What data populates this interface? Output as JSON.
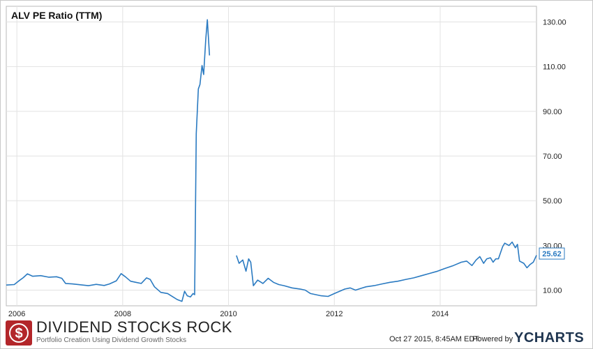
{
  "chart_data": {
    "type": "line",
    "title": "ALV PE Ratio (TTM)",
    "x_ticks": [
      "2006",
      "2008",
      "2010",
      "2012",
      "2014"
    ],
    "y_ticks": [
      "10.00",
      "30.00",
      "50.00",
      "70.00",
      "90.00",
      "110.00",
      "130.00"
    ],
    "ylim": [
      3,
      137
    ],
    "xlim": [
      2005.8,
      2015.82
    ],
    "grid": true,
    "y_axis_position": "right",
    "last_value_label": "25.62",
    "series_color": "#2a7ac1",
    "segments": [
      [
        [
          2005.8,
          12.3
        ],
        [
          2005.95,
          12.5
        ],
        [
          2006.03,
          14.0
        ],
        [
          2006.12,
          15.6
        ],
        [
          2006.2,
          17.3
        ],
        [
          2006.3,
          16.2
        ],
        [
          2006.45,
          16.5
        ],
        [
          2006.6,
          15.8
        ],
        [
          2006.75,
          16.0
        ],
        [
          2006.85,
          15.3
        ],
        [
          2006.92,
          13.0
        ],
        [
          2007.05,
          12.8
        ],
        [
          2007.2,
          12.4
        ],
        [
          2007.35,
          12.0
        ],
        [
          2007.5,
          12.6
        ],
        [
          2007.65,
          12.1
        ],
        [
          2007.75,
          12.8
        ],
        [
          2007.88,
          14.2
        ],
        [
          2007.97,
          17.4
        ],
        [
          2008.05,
          16.0
        ],
        [
          2008.15,
          14.0
        ],
        [
          2008.25,
          13.5
        ],
        [
          2008.35,
          13.0
        ],
        [
          2008.45,
          15.5
        ],
        [
          2008.52,
          14.8
        ],
        [
          2008.6,
          11.5
        ],
        [
          2008.72,
          9.0
        ],
        [
          2008.85,
          8.5
        ],
        [
          2008.95,
          7.0
        ],
        [
          2009.03,
          5.8
        ],
        [
          2009.12,
          5.0
        ],
        [
          2009.17,
          9.5
        ],
        [
          2009.22,
          7.5
        ],
        [
          2009.28,
          7.0
        ],
        [
          2009.33,
          8.5
        ],
        [
          2009.36,
          8.0
        ],
        [
          2009.39,
          80.0
        ],
        [
          2009.43,
          100.0
        ],
        [
          2009.46,
          102.0
        ],
        [
          2009.5,
          110.5
        ],
        [
          2009.53,
          106.5
        ],
        [
          2009.57,
          122.0
        ],
        [
          2009.6,
          131.0
        ],
        [
          2009.64,
          115.0
        ]
      ],
      [
        [
          2010.15,
          25.5
        ],
        [
          2010.2,
          22.0
        ],
        [
          2010.27,
          23.5
        ],
        [
          2010.33,
          18.5
        ],
        [
          2010.38,
          24.0
        ],
        [
          2010.42,
          22.5
        ],
        [
          2010.47,
          12.0
        ],
        [
          2010.55,
          14.5
        ],
        [
          2010.65,
          13.0
        ],
        [
          2010.75,
          15.3
        ],
        [
          2010.85,
          13.5
        ],
        [
          2010.95,
          12.5
        ],
        [
          2011.05,
          12.0
        ],
        [
          2011.2,
          11.0
        ],
        [
          2011.35,
          10.5
        ],
        [
          2011.45,
          10.0
        ],
        [
          2011.55,
          8.5
        ],
        [
          2011.65,
          8.0
        ],
        [
          2011.75,
          7.5
        ],
        [
          2011.88,
          7.2
        ],
        [
          2012.0,
          8.5
        ],
        [
          2012.1,
          9.5
        ],
        [
          2012.2,
          10.5
        ],
        [
          2012.3,
          11.0
        ],
        [
          2012.4,
          10.0
        ],
        [
          2012.5,
          10.8
        ],
        [
          2012.6,
          11.5
        ],
        [
          2012.75,
          12.0
        ],
        [
          2012.9,
          12.8
        ],
        [
          2013.05,
          13.5
        ],
        [
          2013.2,
          14.0
        ],
        [
          2013.35,
          14.8
        ],
        [
          2013.5,
          15.5
        ],
        [
          2013.65,
          16.5
        ],
        [
          2013.8,
          17.5
        ],
        [
          2013.95,
          18.5
        ],
        [
          2014.1,
          19.8
        ],
        [
          2014.25,
          21.0
        ],
        [
          2014.4,
          22.5
        ],
        [
          2014.5,
          23.0
        ],
        [
          2014.6,
          21.0
        ],
        [
          2014.68,
          23.5
        ],
        [
          2014.75,
          25.0
        ],
        [
          2014.82,
          22.0
        ],
        [
          2014.88,
          24.0
        ],
        [
          2014.95,
          24.5
        ],
        [
          2015.0,
          22.5
        ],
        [
          2015.05,
          24.0
        ],
        [
          2015.1,
          24.0
        ],
        [
          2015.18,
          29.5
        ],
        [
          2015.22,
          31.0
        ],
        [
          2015.3,
          30.0
        ],
        [
          2015.36,
          31.5
        ],
        [
          2015.42,
          29.0
        ],
        [
          2015.46,
          30.5
        ],
        [
          2015.5,
          23.0
        ],
        [
          2015.58,
          22.0
        ],
        [
          2015.64,
          20.0
        ],
        [
          2015.7,
          21.5
        ],
        [
          2015.76,
          22.5
        ],
        [
          2015.82,
          25.62
        ]
      ]
    ]
  },
  "footer": {
    "brand_title": "DIVIDEND STOCKS ROCK",
    "brand_subtitle": "Portfolio Creation Using Dividend Growth Stocks",
    "timestamp": "Oct 27 2015, 8:45AM EDT.",
    "powered_by": "Powered by",
    "ycharts": "YCHARTS",
    "logo_glyph": "$"
  }
}
